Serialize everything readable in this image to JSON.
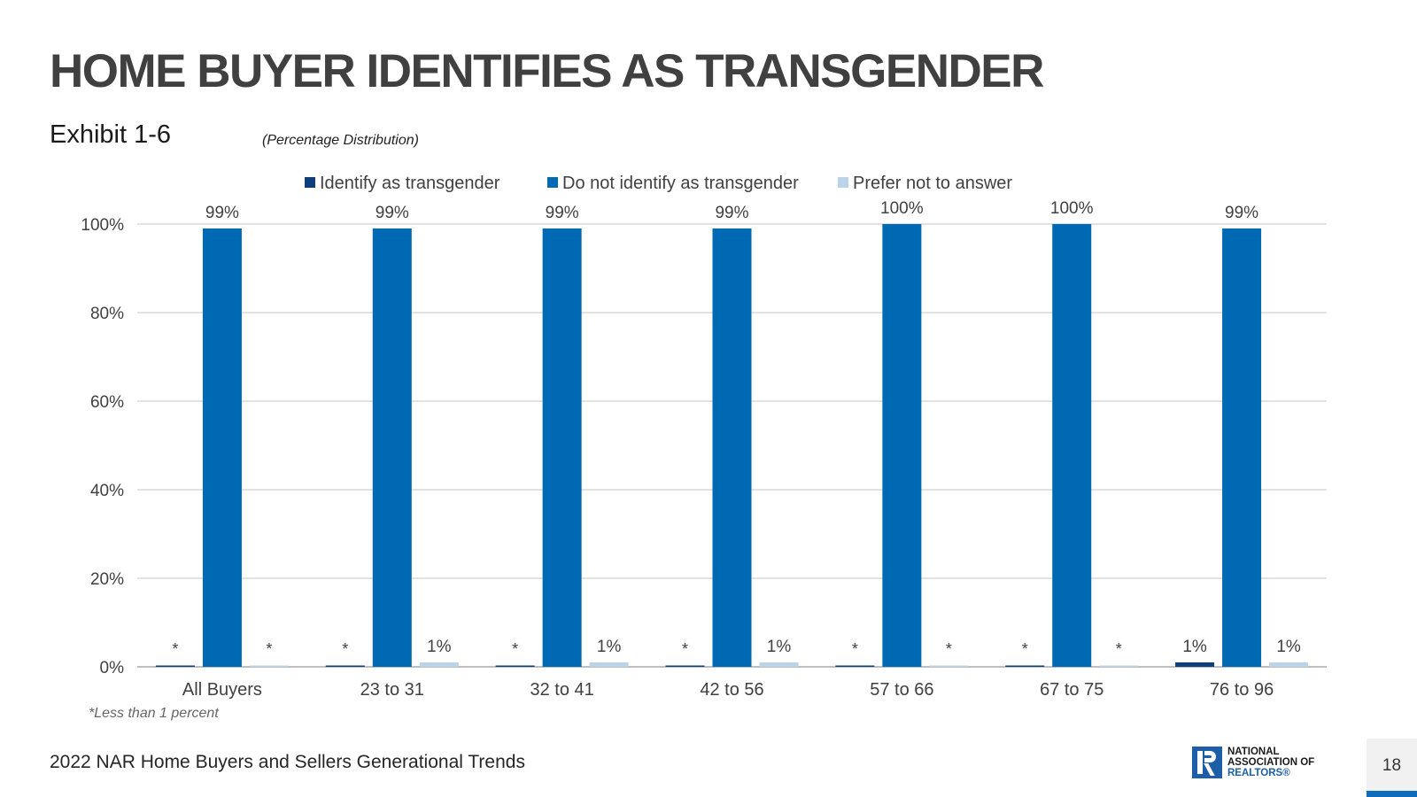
{
  "header": {
    "title": "HOME BUYER IDENTIFIES AS TRANSGENDER",
    "exhibit": "Exhibit 1-6",
    "subtitle": "(Percentage Distribution)"
  },
  "chart_data": {
    "type": "bar",
    "categories": [
      "All Buyers",
      "23 to 31",
      "32 to 41",
      "42 to 56",
      "57 to 66",
      "67 to 75",
      "76 to 96"
    ],
    "series": [
      {
        "name": "Identify as transgender",
        "color": "#0e3f7a",
        "values": [
          0.3,
          0.3,
          0.3,
          0.3,
          0.3,
          0.3,
          1
        ],
        "labels": [
          "*",
          "*",
          "*",
          "*",
          "*",
          "*",
          "1%"
        ]
      },
      {
        "name": "Do not identify as transgender",
        "color": "#0069b4",
        "values": [
          99,
          99,
          99,
          99,
          100,
          100,
          99
        ],
        "labels": [
          "99%",
          "99%",
          "99%",
          "99%",
          "100%",
          "100%",
          "99%"
        ]
      },
      {
        "name": "Prefer not to answer",
        "color": "#bcd4ea",
        "values": [
          0.3,
          1,
          1,
          1,
          0.3,
          0.3,
          1
        ],
        "labels": [
          "*",
          "1%",
          "1%",
          "1%",
          "*",
          "*",
          "1%"
        ]
      }
    ],
    "yticks": [
      "0%",
      "20%",
      "40%",
      "60%",
      "80%",
      "100%"
    ],
    "ylim": [
      0,
      100
    ],
    "grid": true,
    "legend": "top-center"
  },
  "footnote": "*Less than 1 percent",
  "footer": {
    "text": "2022 NAR Home Buyers and Sellers Generational Trends",
    "logo_line1": "NATIONAL",
    "logo_line2": "ASSOCIATION OF",
    "logo_line3": "REALTORS®",
    "page_number": "18"
  }
}
